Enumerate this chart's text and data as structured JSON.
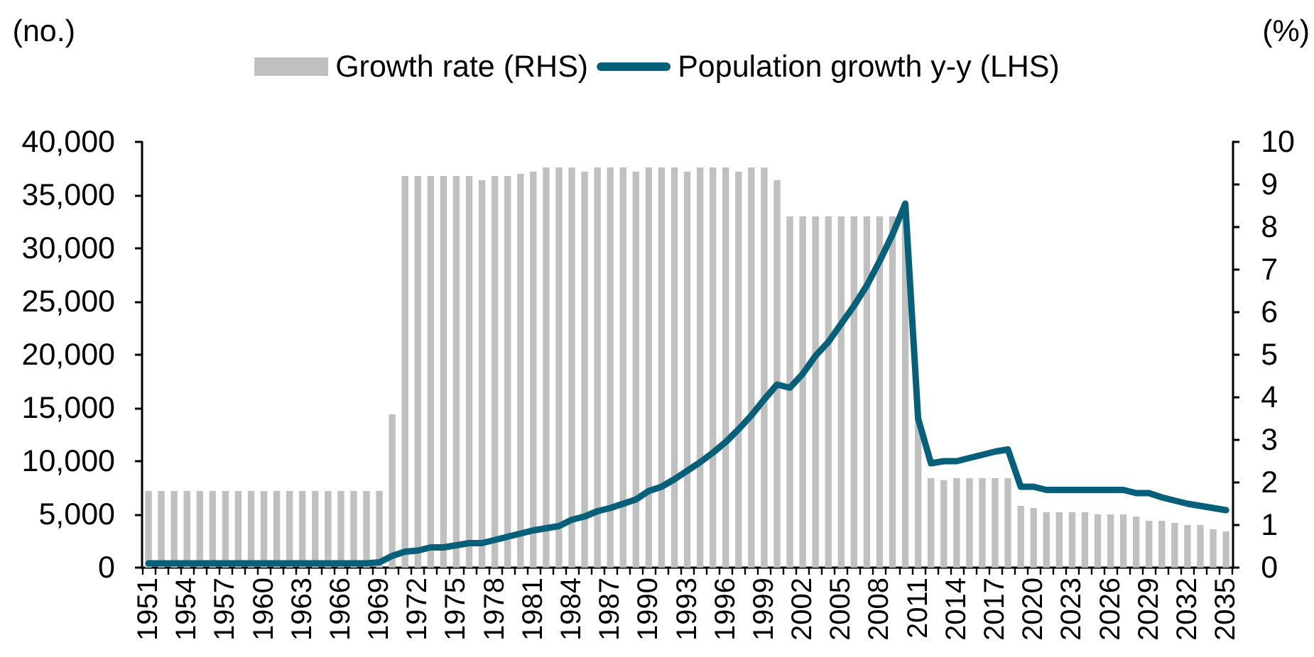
{
  "chart_data": {
    "type": "bar",
    "ylabel": "(no.)",
    "y2label": "(%)",
    "legend": "top",
    "marker": "none",
    "categories": [
      "1951",
      null,
      null,
      "1954",
      null,
      null,
      "1957",
      null,
      null,
      "1960",
      null,
      null,
      "1963",
      null,
      null,
      "1966",
      null,
      null,
      "1969",
      null,
      null,
      "1972",
      null,
      null,
      "1975",
      null,
      null,
      "1978",
      null,
      null,
      "1981",
      null,
      null,
      "1984",
      null,
      null,
      "1987",
      null,
      null,
      "1990",
      null,
      null,
      "1993",
      null,
      null,
      "1996",
      null,
      null,
      "1999",
      null,
      null,
      "2002",
      null,
      null,
      "2005",
      null,
      null,
      "2008",
      null,
      null,
      "2011",
      null,
      null,
      "2014",
      null,
      null,
      "2017",
      null,
      null,
      "2020",
      null,
      null,
      "2023",
      null,
      null,
      "2026",
      null,
      null,
      "2029",
      null,
      null,
      "2032",
      null,
      null,
      "2035"
    ],
    "series": [
      {
        "name": "Growth rate (RHS)",
        "axis": "y2",
        "color": "#c0c0c0",
        "values": [
          1.8,
          1.8,
          1.8,
          1.8,
          1.8,
          1.8,
          1.8,
          1.8,
          1.8,
          1.8,
          1.8,
          1.8,
          1.8,
          1.8,
          1.8,
          1.8,
          1.8,
          1.8,
          1.8,
          3.6,
          9.2,
          9.2,
          9.2,
          9.2,
          9.2,
          9.2,
          9.1,
          9.2,
          9.2,
          9.25,
          9.3,
          9.4,
          9.4,
          9.4,
          9.3,
          9.4,
          9.4,
          9.4,
          9.3,
          9.4,
          9.4,
          9.4,
          9.3,
          9.4,
          9.4,
          9.4,
          9.3,
          9.4,
          9.4,
          9.1,
          8.25,
          8.25,
          8.25,
          8.25,
          8.25,
          8.25,
          8.25,
          8.25,
          8.25,
          8.25,
          3.5,
          2.1,
          2.05,
          2.1,
          2.1,
          2.1,
          2.1,
          2.1,
          1.45,
          1.4,
          1.3,
          1.3,
          1.3,
          1.3,
          1.25,
          1.25,
          1.25,
          1.2,
          1.1,
          1.1,
          1.05,
          1.0,
          1.0,
          0.9,
          0.85
        ]
      },
      {
        "name": "Population growth y-y (LHS)",
        "type": "line",
        "color": "#06607a",
        "values": [
          400,
          400,
          400,
          400,
          400,
          400,
          400,
          400,
          400,
          400,
          400,
          400,
          400,
          400,
          400,
          400,
          400,
          400,
          500,
          1100,
          1500,
          1600,
          1900,
          1900,
          2100,
          2300,
          2300,
          2600,
          2900,
          3200,
          3500,
          3700,
          3900,
          4500,
          4800,
          5300,
          5600,
          6000,
          6400,
          7200,
          7600,
          8300,
          9100,
          9900,
          10800,
          11800,
          13000,
          14300,
          15800,
          17200,
          16900,
          18200,
          19900,
          21200,
          22900,
          24600,
          26500,
          28800,
          31300,
          34200,
          14000,
          9800,
          10000,
          10000,
          10300,
          10600,
          10900,
          11100,
          7600,
          7600,
          7300,
          7300,
          7300,
          7300,
          7300,
          7300,
          7300,
          7000,
          7000,
          6600,
          6300,
          6000,
          5800,
          5600,
          5400
        ]
      }
    ],
    "ylim": [
      0,
      40000
    ],
    "yticks": [
      0,
      {
        "value": 5000,
        "label": "5,000"
      },
      {
        "value": 10000,
        "label": "10,000"
      },
      {
        "value": 15000,
        "label": "15,000"
      },
      {
        "value": 20000,
        "label": "20,000"
      },
      {
        "value": 25000,
        "label": "25,000"
      },
      {
        "value": 30000,
        "label": "30,000"
      },
      {
        "value": 35000,
        "label": "35,000"
      },
      {
        "value": 40000,
        "label": "40,000"
      }
    ],
    "y2lim": [
      0,
      10
    ],
    "y2ticks": [
      0,
      1,
      2,
      3,
      4,
      5,
      6,
      7,
      8,
      9,
      10
    ]
  }
}
